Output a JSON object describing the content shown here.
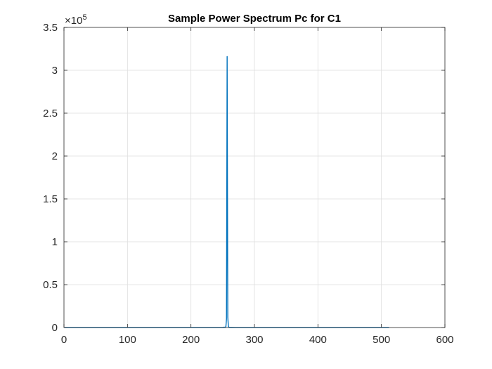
{
  "chart_data": {
    "type": "line",
    "title": "Sample Power Spectrum Pc for C1",
    "xlabel": "",
    "ylabel": "",
    "xlim": [
      0,
      600
    ],
    "ylim": [
      0,
      350000
    ],
    "grid": true,
    "y_exponent_label": "×10",
    "y_exponent_power": "5",
    "x_ticks": [
      0,
      100,
      200,
      300,
      400,
      500,
      600
    ],
    "x_tick_labels": [
      "0",
      "100",
      "200",
      "300",
      "400",
      "500",
      "600"
    ],
    "y_ticks": [
      0,
      50000,
      100000,
      150000,
      200000,
      250000,
      300000,
      350000
    ],
    "y_tick_labels": [
      "0",
      "0.5",
      "1",
      "1.5",
      "2",
      "2.5",
      "3",
      "3.5"
    ],
    "series": [
      {
        "color": "#0072BD",
        "x": [
          1,
          240,
          250,
          254,
          255,
          256,
          257,
          258,
          259,
          260,
          262,
          270,
          400,
          512
        ],
        "y": [
          150,
          150,
          200,
          400,
          900,
          10000,
          316000,
          12000,
          1000,
          400,
          200,
          150,
          150,
          150
        ]
      }
    ]
  }
}
